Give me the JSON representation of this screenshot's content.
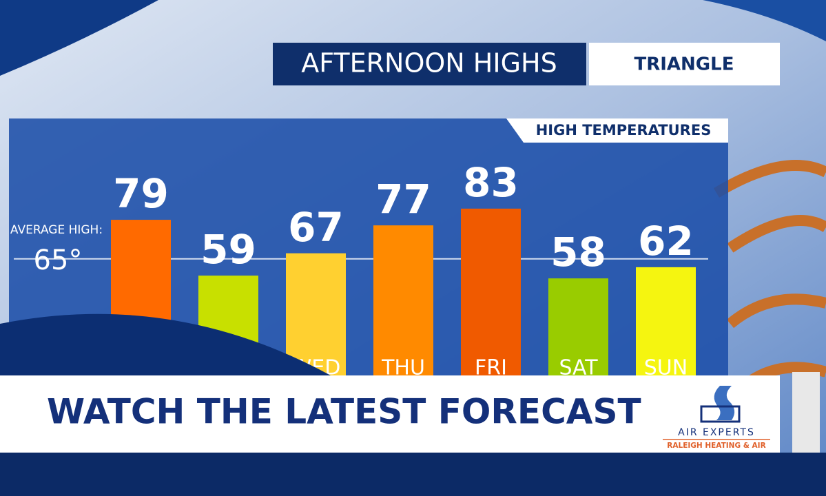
{
  "header": {
    "title": "AFTERNOON HIGHS",
    "region": "TRIANGLE"
  },
  "banner": {
    "text": "WATCH THE LATEST FORECAST"
  },
  "sponsor": {
    "name": "AIR EXPERTS",
    "tagline": "RALEIGH HEATING & AIR"
  },
  "chart_data": {
    "type": "bar",
    "title": "HIGH TEMPERATURES",
    "categories": [
      null,
      null,
      "WED",
      "THU",
      "FRI",
      "SAT",
      "SUN"
    ],
    "values": [
      79,
      59,
      67,
      77,
      83,
      58,
      62
    ],
    "colors": [
      "#ff6a00",
      "#c8e000",
      "#ffd030",
      "#ff8a00",
      "#f05a00",
      "#99cc00",
      "#f5f510"
    ],
    "ylim": [
      20,
      90
    ],
    "grid": false,
    "reference_line": {
      "text": "AVERAGE HIGH:",
      "value": 65,
      "label": "65°"
    }
  }
}
